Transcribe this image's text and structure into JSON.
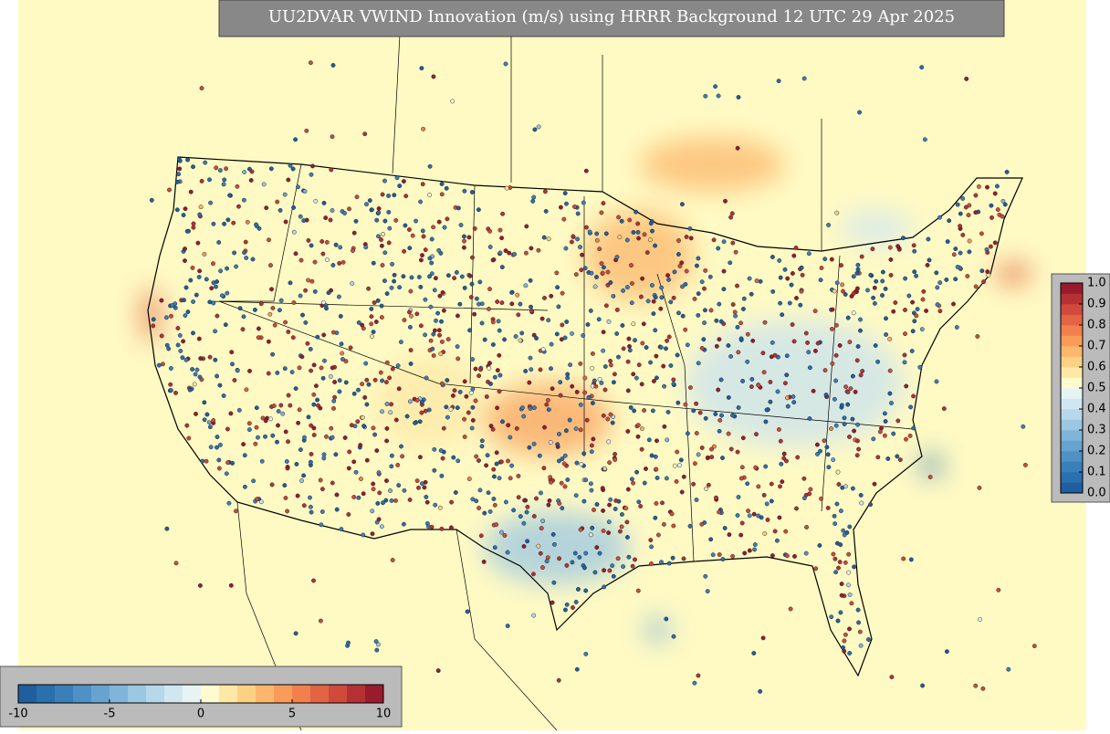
{
  "title": "UU2DVAR VWIND Innovation (m/s) using HRRR Background 12 UTC 29 Apr 2025",
  "colorbar_bottom": {
    "ticks": [
      -10,
      -5,
      0,
      5,
      10
    ],
    "colors": [
      "#1f5f9e",
      "#2a6fae",
      "#3a7fba",
      "#4f91c4",
      "#66a3cf",
      "#80b5d9",
      "#9bc7e2",
      "#b6d8eb",
      "#d0e7f1",
      "#e8f3f3",
      "#fffbd0",
      "#fde8a6",
      "#fdd184",
      "#fcb76c",
      "#f99c59",
      "#f1804d",
      "#e26443",
      "#cf4a3b",
      "#b63133",
      "#9a1b2c"
    ]
  },
  "colorbar_right": {
    "ticks": [
      {
        "value": 0,
        "label": "0.0"
      },
      0.1,
      0.2,
      0.3,
      0.4,
      0.5,
      0.6,
      0.7,
      0.8,
      0.9,
      {
        "value": 1,
        "label": "1.0"
      }
    ],
    "colors": [
      "#1f5f9e",
      "#2a6fae",
      "#3a7fba",
      "#4f91c4",
      "#66a3cf",
      "#80b5d9",
      "#9bc7e2",
      "#b6d8eb",
      "#d0e7f1",
      "#e8f3f3",
      "#fffbd0",
      "#fde8a6",
      "#fdd184",
      "#fcb76c",
      "#f99c59",
      "#f1804d",
      "#e26443",
      "#cf4a3b",
      "#b63133",
      "#9a1b2c"
    ]
  }
}
